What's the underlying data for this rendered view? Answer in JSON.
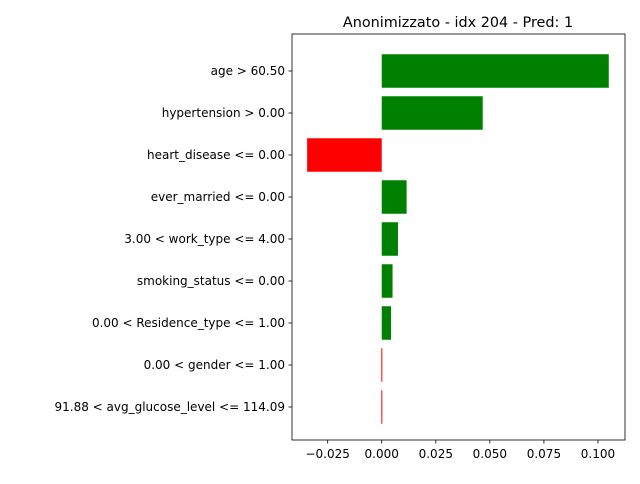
{
  "chart_data": {
    "type": "bar",
    "orientation": "horizontal",
    "title": "Anonimizzato - idx 204 - Pred: 1",
    "xlabel": "",
    "ylabel": "",
    "xlim": [
      -0.0415,
      0.1125
    ],
    "xticks": [
      -0.025,
      0.0,
      0.025,
      0.05,
      0.075,
      0.1
    ],
    "xtick_labels": [
      "−0.025",
      "0.000",
      "0.025",
      "0.050",
      "0.075",
      "0.100"
    ],
    "grid": false,
    "categories": [
      "age > 60.50",
      "hypertension > 0.00",
      "heart_disease <= 0.00",
      "ever_married <= 0.00",
      "3.00 < work_type <= 4.00",
      "smoking_status <= 0.00",
      "0.00 < Residence_type <= 1.00",
      "0.00 < gender <= 1.00",
      "91.88 < avg_glucose_level <= 114.09"
    ],
    "values": [
      0.105,
      0.0467,
      -0.0345,
      0.0115,
      0.0075,
      0.005,
      0.0043,
      -0.0002,
      -0.0002
    ],
    "colors": {
      "positive": "#008000",
      "negative": "#ff0000",
      "axis": "#000000"
    }
  }
}
